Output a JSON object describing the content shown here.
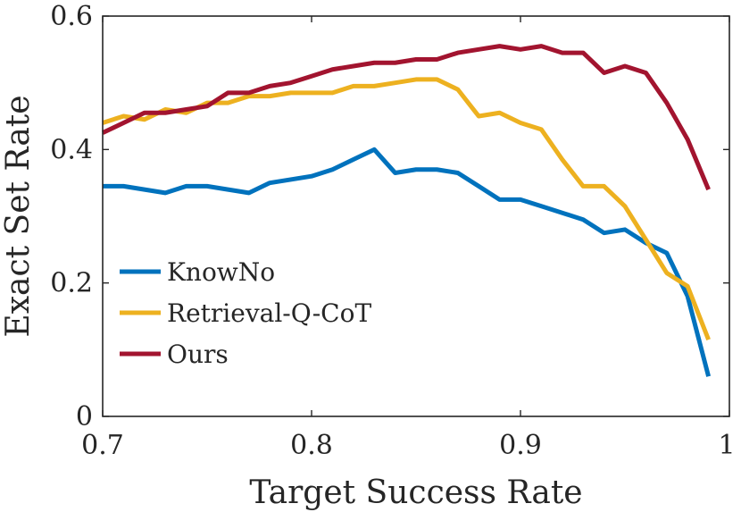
{
  "chart_data": {
    "type": "line",
    "title": "",
    "xlabel": "Target Success Rate",
    "ylabel": "Exact Set Rate",
    "xlim": [
      0.7,
      1.0
    ],
    "ylim": [
      0,
      0.6
    ],
    "xticks": [
      0.7,
      0.8,
      0.9,
      1.0
    ],
    "xtick_labels": [
      "0.7",
      "0.8",
      "0.9",
      "1"
    ],
    "yticks": [
      0,
      0.2,
      0.4,
      0.6
    ],
    "ytick_labels": [
      "0",
      "0.2",
      "0.4",
      "0.6"
    ],
    "grid": false,
    "legend_position": "bottom-left",
    "x": [
      0.7,
      0.71,
      0.72,
      0.73,
      0.74,
      0.75,
      0.76,
      0.77,
      0.78,
      0.79,
      0.8,
      0.81,
      0.82,
      0.83,
      0.84,
      0.85,
      0.86,
      0.87,
      0.88,
      0.89,
      0.9,
      0.91,
      0.92,
      0.93,
      0.94,
      0.95,
      0.96,
      0.97,
      0.98,
      0.99
    ],
    "series": [
      {
        "name": "KnowNo",
        "color": "#0072BD",
        "values": [
          0.345,
          0.345,
          0.34,
          0.335,
          0.345,
          0.345,
          0.34,
          0.335,
          0.35,
          0.355,
          0.36,
          0.37,
          0.385,
          0.4,
          0.365,
          0.37,
          0.37,
          0.365,
          0.345,
          0.325,
          0.325,
          0.315,
          0.305,
          0.295,
          0.275,
          0.28,
          0.26,
          0.245,
          0.18,
          0.06
        ]
      },
      {
        "name": "Retrieval-Q-CoT",
        "color": "#EDB120",
        "values": [
          0.44,
          0.45,
          0.445,
          0.46,
          0.455,
          0.47,
          0.47,
          0.48,
          0.48,
          0.485,
          0.485,
          0.485,
          0.495,
          0.495,
          0.5,
          0.505,
          0.505,
          0.49,
          0.45,
          0.455,
          0.44,
          0.43,
          0.385,
          0.345,
          0.345,
          0.315,
          0.265,
          0.215,
          0.195,
          0.115
        ]
      },
      {
        "name": "Ours",
        "color": "#A2142F",
        "values": [
          0.425,
          0.44,
          0.455,
          0.455,
          0.46,
          0.465,
          0.485,
          0.485,
          0.495,
          0.5,
          0.51,
          0.52,
          0.525,
          0.53,
          0.53,
          0.535,
          0.535,
          0.545,
          0.55,
          0.555,
          0.55,
          0.555,
          0.545,
          0.545,
          0.515,
          0.525,
          0.515,
          0.47,
          0.415,
          0.34
        ]
      }
    ]
  }
}
